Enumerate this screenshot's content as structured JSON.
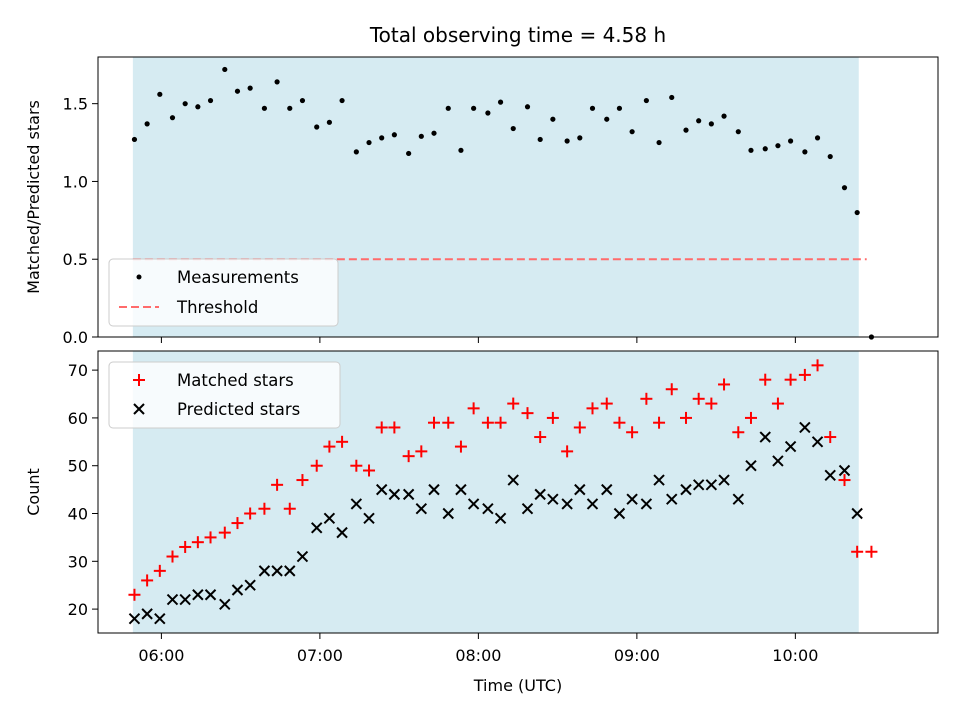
{
  "figure": {
    "title": "Total observing time = 4.58 h",
    "xlabel": "Time (UTC)",
    "x_ticks": [
      {
        "h": 6,
        "label": "06:00"
      },
      {
        "h": 7,
        "label": "07:00"
      },
      {
        "h": 8,
        "label": "08:00"
      },
      {
        "h": 9,
        "label": "09:00"
      },
      {
        "h": 10,
        "label": "10:00"
      }
    ],
    "xlim_hours": [
      5.6,
      10.9
    ]
  },
  "chart_data": [
    {
      "type": "scatter",
      "panel": "top",
      "ylabel": "Matched/Predicted stars",
      "ylim": [
        0,
        1.8
      ],
      "y_ticks": [
        0.0,
        0.5,
        1.0,
        1.5
      ],
      "shaded_span_hours": [
        5.82,
        10.4
      ],
      "shade_color": "#add8e6",
      "threshold": {
        "name": "Threshold",
        "value": 0.5,
        "x_range_hours": [
          5.82,
          10.45
        ],
        "color": "#ff6b6b",
        "style": "dashed"
      },
      "series": [
        {
          "name": "Measurements",
          "color": "#000000",
          "x_hours": [
            5.83,
            5.91,
            5.99,
            6.07,
            6.15,
            6.23,
            6.31,
            6.4,
            6.48,
            6.56,
            6.65,
            6.73,
            6.81,
            6.89,
            6.98,
            7.06,
            7.14,
            7.23,
            7.31,
            7.39,
            7.47,
            7.56,
            7.64,
            7.72,
            7.81,
            7.89,
            7.97,
            8.06,
            8.14,
            8.22,
            8.31,
            8.39,
            8.47,
            8.56,
            8.64,
            8.72,
            8.81,
            8.89,
            8.97,
            9.06,
            9.14,
            9.22,
            9.31,
            9.39,
            9.47,
            9.55,
            9.64,
            9.72,
            9.81,
            9.89,
            9.97,
            10.06,
            10.14,
            10.22,
            10.31,
            10.39,
            10.48
          ],
          "values": [
            1.27,
            1.37,
            1.56,
            1.41,
            1.5,
            1.48,
            1.52,
            1.72,
            1.58,
            1.6,
            1.47,
            1.64,
            1.47,
            1.52,
            1.35,
            1.38,
            1.52,
            1.19,
            1.25,
            1.28,
            1.3,
            1.18,
            1.29,
            1.31,
            1.47,
            1.2,
            1.47,
            1.44,
            1.51,
            1.34,
            1.48,
            1.27,
            1.4,
            1.26,
            1.28,
            1.47,
            1.4,
            1.47,
            1.32,
            1.52,
            1.25,
            1.54,
            1.33,
            1.39,
            1.37,
            1.42,
            1.32,
            1.2,
            1.21,
            1.23,
            1.26,
            1.19,
            1.28,
            1.16,
            0.96,
            0.8,
            0.0
          ]
        }
      ],
      "legend": {
        "position": "lower-left"
      }
    },
    {
      "type": "scatter",
      "panel": "bottom",
      "ylabel": "Count",
      "ylim": [
        15,
        74
      ],
      "y_ticks": [
        20,
        30,
        40,
        50,
        60,
        70
      ],
      "shaded_span_hours": [
        5.82,
        10.4
      ],
      "shade_color": "#add8e6",
      "series": [
        {
          "name": "Matched stars",
          "marker": "plus",
          "color": "#ff0000",
          "x_hours": [
            5.83,
            5.91,
            5.99,
            6.07,
            6.15,
            6.23,
            6.31,
            6.4,
            6.48,
            6.56,
            6.65,
            6.73,
            6.81,
            6.89,
            6.98,
            7.06,
            7.14,
            7.23,
            7.31,
            7.39,
            7.47,
            7.56,
            7.64,
            7.72,
            7.81,
            7.89,
            7.97,
            8.06,
            8.14,
            8.22,
            8.31,
            8.39,
            8.47,
            8.56,
            8.64,
            8.72,
            8.81,
            8.89,
            8.97,
            9.06,
            9.14,
            9.22,
            9.31,
            9.39,
            9.47,
            9.55,
            9.64,
            9.72,
            9.81,
            9.89,
            9.97,
            10.06,
            10.14,
            10.22,
            10.31,
            10.39,
            10.48
          ],
          "values": [
            23,
            26,
            28,
            31,
            33,
            34,
            35,
            36,
            38,
            40,
            41,
            46,
            41,
            47,
            50,
            54,
            55,
            50,
            49,
            58,
            58,
            52,
            53,
            59,
            59,
            54,
            62,
            59,
            59,
            63,
            61,
            56,
            60,
            53,
            58,
            62,
            63,
            59,
            57,
            64,
            59,
            66,
            60,
            64,
            63,
            67,
            57,
            60,
            68,
            63,
            68,
            69,
            71,
            56,
            47,
            32,
            32
          ]
        },
        {
          "name": "Predicted stars",
          "marker": "x",
          "color": "#000000",
          "x_hours": [
            5.83,
            5.91,
            5.99,
            6.07,
            6.15,
            6.23,
            6.31,
            6.4,
            6.48,
            6.56,
            6.65,
            6.73,
            6.81,
            6.89,
            6.98,
            7.06,
            7.14,
            7.23,
            7.31,
            7.39,
            7.47,
            7.56,
            7.64,
            7.72,
            7.81,
            7.89,
            7.97,
            8.06,
            8.14,
            8.22,
            8.31,
            8.39,
            8.47,
            8.56,
            8.64,
            8.72,
            8.81,
            8.89,
            8.97,
            9.06,
            9.14,
            9.22,
            9.31,
            9.39,
            9.47,
            9.55,
            9.64,
            9.72,
            9.81,
            9.89,
            9.97,
            10.06,
            10.14,
            10.22,
            10.31,
            10.39
          ],
          "values": [
            18,
            19,
            18,
            22,
            22,
            23,
            23,
            21,
            24,
            25,
            28,
            28,
            28,
            31,
            37,
            39,
            36,
            42,
            39,
            45,
            44,
            44,
            41,
            45,
            40,
            45,
            42,
            41,
            39,
            47,
            41,
            44,
            43,
            42,
            45,
            42,
            45,
            40,
            43,
            42,
            47,
            43,
            45,
            46,
            46,
            47,
            43,
            50,
            56,
            51,
            54,
            58,
            55,
            48,
            49,
            40
          ]
        }
      ],
      "legend": {
        "position": "upper-left"
      }
    }
  ]
}
